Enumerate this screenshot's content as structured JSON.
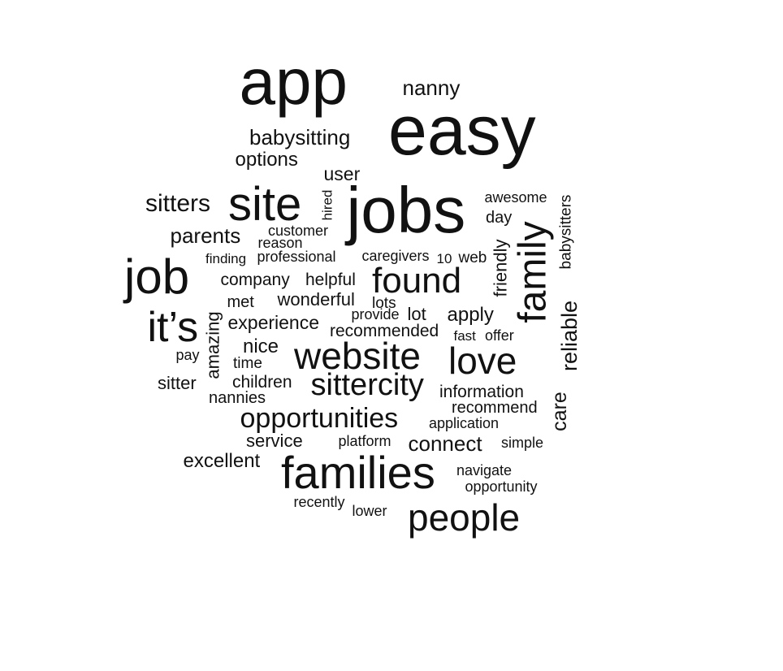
{
  "text_color": "#111111",
  "background": "#ffffff",
  "words": [
    {
      "text": "app",
      "rotated": false
    },
    {
      "text": "easy",
      "rotated": false
    },
    {
      "text": "nanny",
      "rotated": false
    },
    {
      "text": "babysitting",
      "rotated": false
    },
    {
      "text": "options",
      "rotated": false
    },
    {
      "text": "user",
      "rotated": false
    },
    {
      "text": "site",
      "rotated": false
    },
    {
      "text": "jobs",
      "rotated": false
    },
    {
      "text": "sitters",
      "rotated": false
    },
    {
      "text": "hired",
      "rotated": true
    },
    {
      "text": "awesome",
      "rotated": false
    },
    {
      "text": "babysitters",
      "rotated": true
    },
    {
      "text": "day",
      "rotated": false
    },
    {
      "text": "customer",
      "rotated": false
    },
    {
      "text": "parents",
      "rotated": false
    },
    {
      "text": "reason",
      "rotated": false
    },
    {
      "text": "family",
      "rotated": true
    },
    {
      "text": "friendly",
      "rotated": true
    },
    {
      "text": "finding",
      "rotated": false
    },
    {
      "text": "professional",
      "rotated": false
    },
    {
      "text": "caregivers",
      "rotated": false
    },
    {
      "text": "10",
      "rotated": false
    },
    {
      "text": "web",
      "rotated": false
    },
    {
      "text": "job",
      "rotated": false
    },
    {
      "text": "company",
      "rotated": false
    },
    {
      "text": "helpful",
      "rotated": false
    },
    {
      "text": "found",
      "rotated": false
    },
    {
      "text": "met",
      "rotated": false
    },
    {
      "text": "wonderful",
      "rotated": false
    },
    {
      "text": "lots",
      "rotated": false
    },
    {
      "text": "reliable",
      "rotated": true
    },
    {
      "text": "it’s",
      "rotated": false
    },
    {
      "text": "amazing",
      "rotated": true
    },
    {
      "text": "provide",
      "rotated": false
    },
    {
      "text": "lot",
      "rotated": false
    },
    {
      "text": "apply",
      "rotated": false
    },
    {
      "text": "experience",
      "rotated": false
    },
    {
      "text": "recommended",
      "rotated": false
    },
    {
      "text": "fast",
      "rotated": false
    },
    {
      "text": "offer",
      "rotated": false
    },
    {
      "text": "nice",
      "rotated": false
    },
    {
      "text": "website",
      "rotated": false
    },
    {
      "text": "love",
      "rotated": false
    },
    {
      "text": "pay",
      "rotated": false
    },
    {
      "text": "time",
      "rotated": false
    },
    {
      "text": "care",
      "rotated": true
    },
    {
      "text": "sitter",
      "rotated": false
    },
    {
      "text": "children",
      "rotated": false
    },
    {
      "text": "sittercity",
      "rotated": false
    },
    {
      "text": "information",
      "rotated": false
    },
    {
      "text": "nannies",
      "rotated": false
    },
    {
      "text": "recommend",
      "rotated": false
    },
    {
      "text": "opportunities",
      "rotated": false
    },
    {
      "text": "application",
      "rotated": false
    },
    {
      "text": "service",
      "rotated": false
    },
    {
      "text": "platform",
      "rotated": false
    },
    {
      "text": "connect",
      "rotated": false
    },
    {
      "text": "simple",
      "rotated": false
    },
    {
      "text": "excellent",
      "rotated": false
    },
    {
      "text": "families",
      "rotated": false
    },
    {
      "text": "navigate",
      "rotated": false
    },
    {
      "text": "opportunity",
      "rotated": false
    },
    {
      "text": "recently",
      "rotated": false
    },
    {
      "text": "lower",
      "rotated": false
    },
    {
      "text": "people",
      "rotated": false
    }
  ]
}
